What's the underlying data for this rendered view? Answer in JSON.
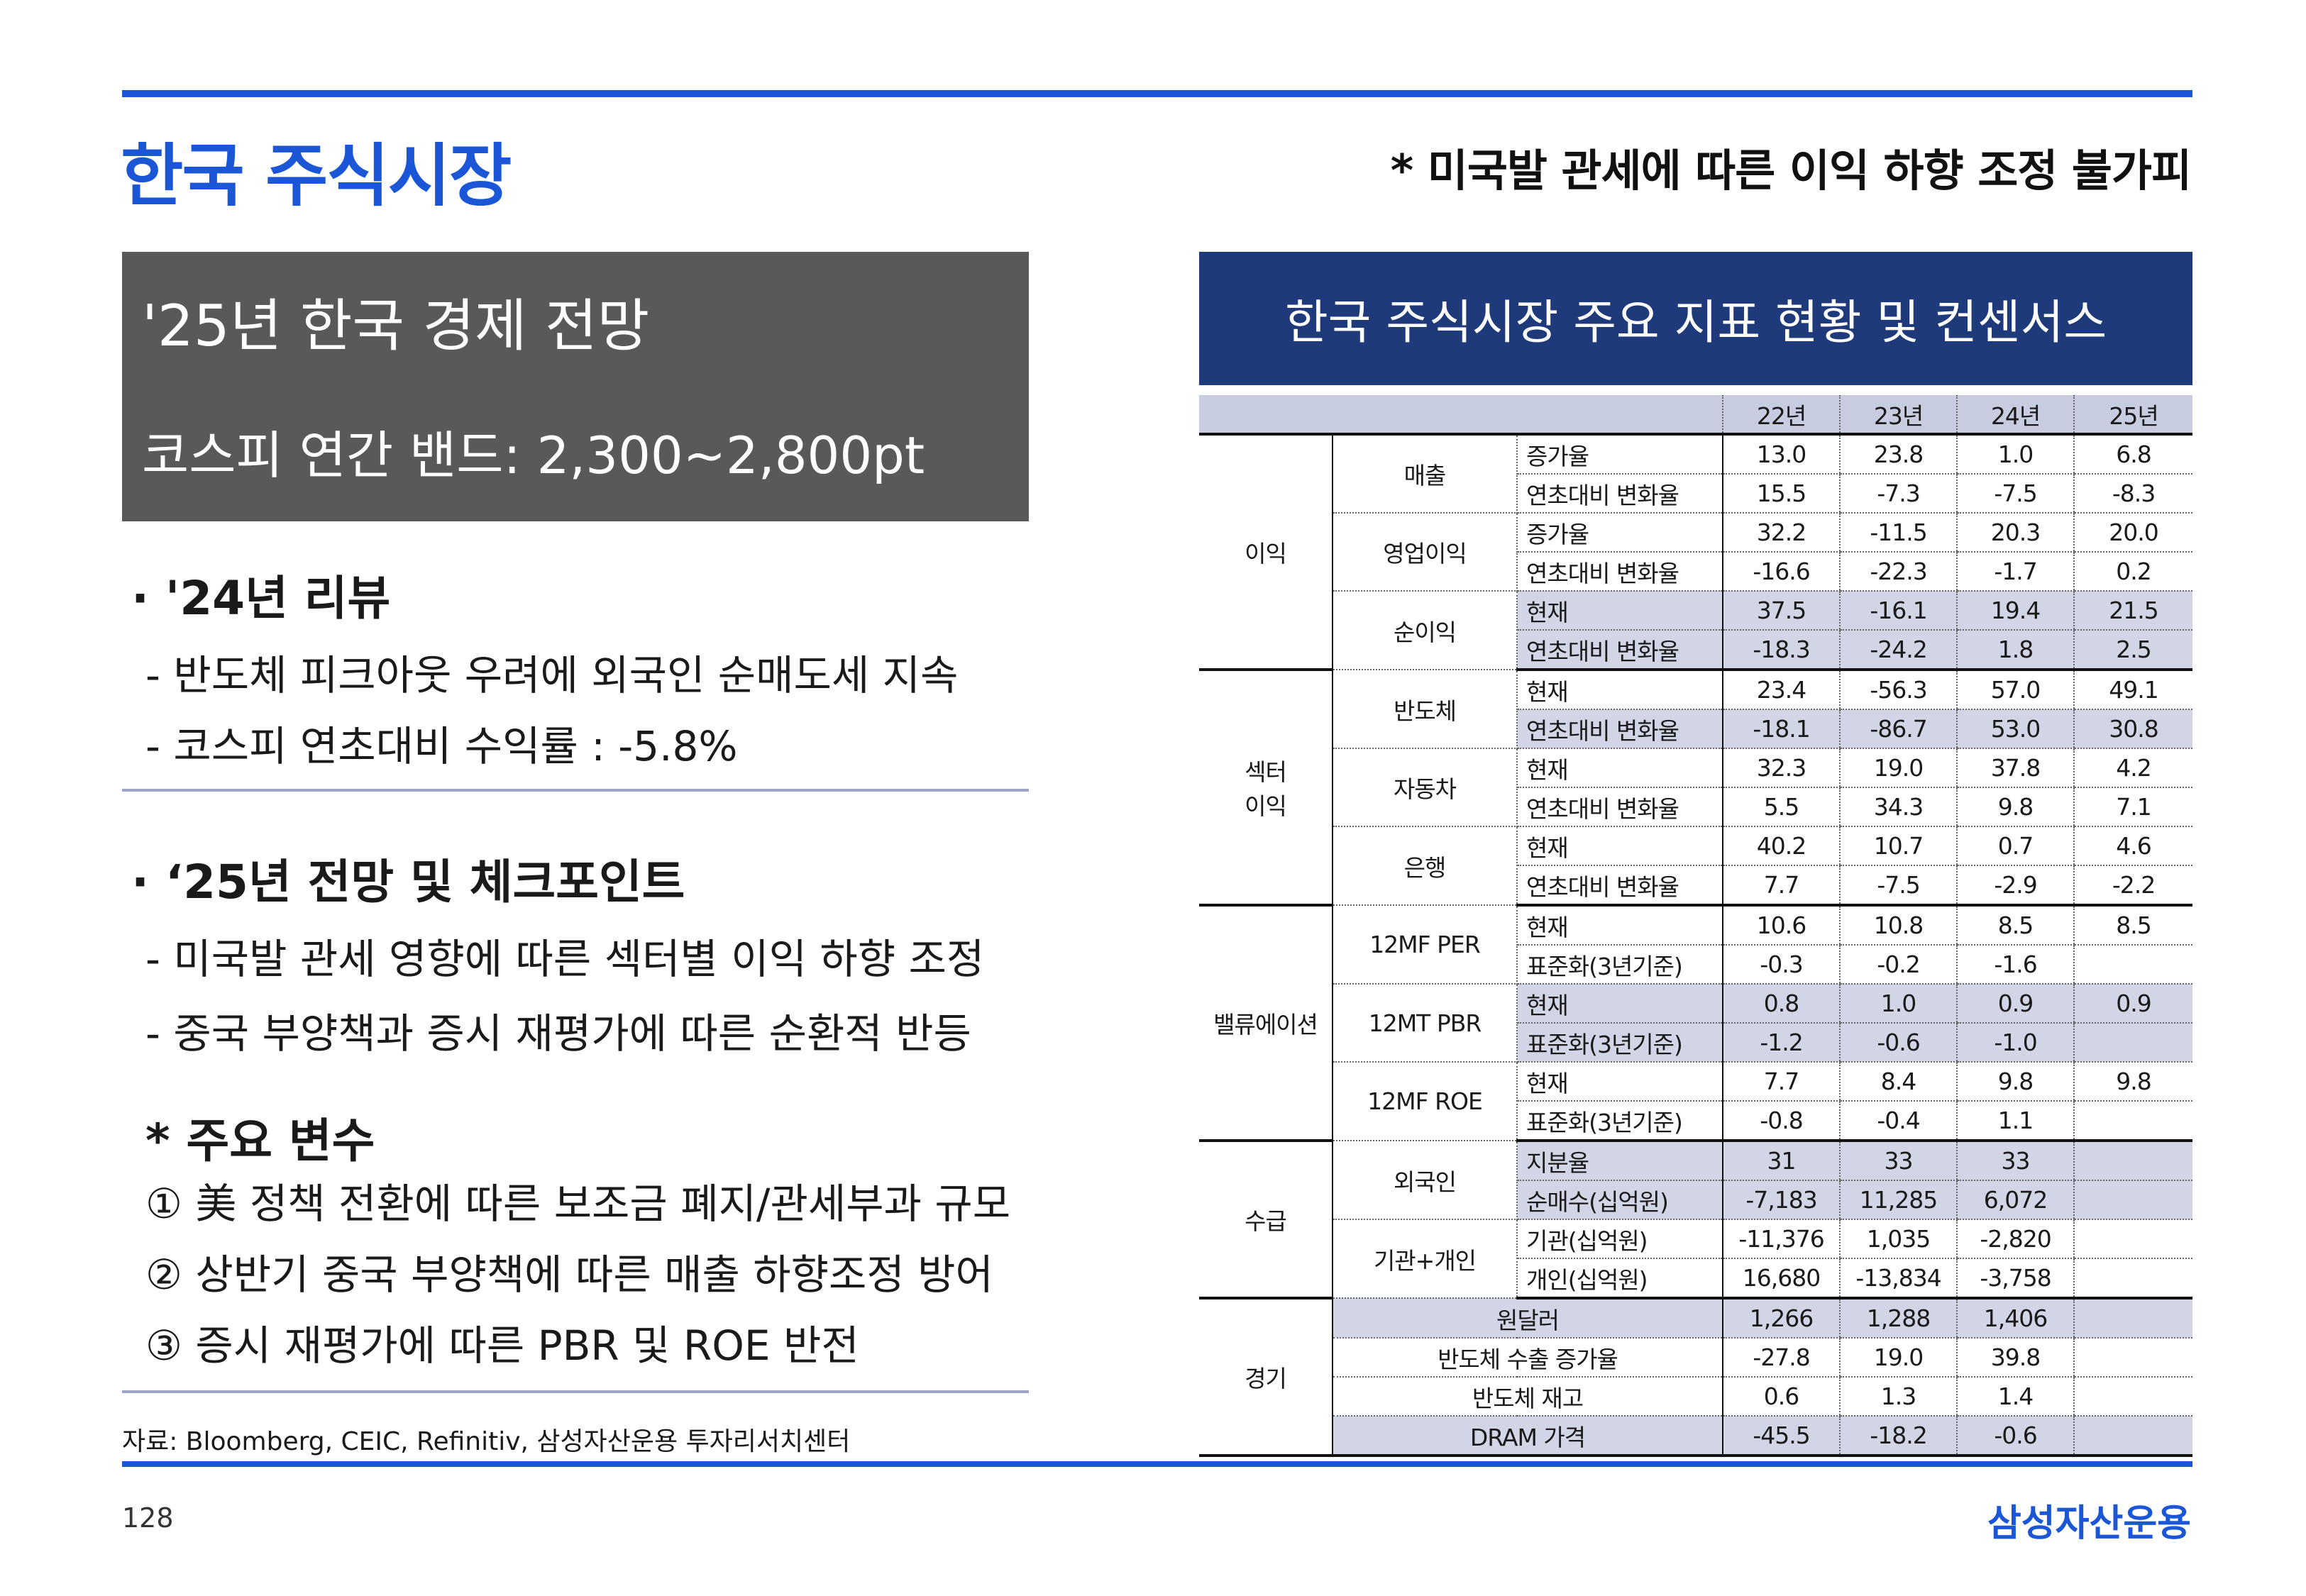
{
  "page_title": "한국 주식시장",
  "subtitle": "* 미국발 관세에 따른 이익 하향 조정 불가피",
  "outlook_box": {
    "title": "'25년 한국 경제 전망",
    "band": "코스피 연간 밴드: 2,300~2,800pt"
  },
  "review": {
    "heading": "· '24년 리뷰",
    "items": [
      "- 반도체 피크아웃 우려에 외국인 순매도세 지속",
      "- 코스피 연초대비 수익률 : -5.8%"
    ]
  },
  "outlook": {
    "heading": "· ‘25년 전망 및 체크포인트",
    "items": [
      "- 미국발 관세 영향에 따른 섹터별 이익 하향 조정",
      "- 중국 부양책과 증시 재평가에 따른 순환적 반등"
    ]
  },
  "variables": {
    "heading": "* 주요 변수",
    "items": [
      "① 美 정책 전환에 따른 보조금 폐지/관세부과 규모",
      "② 상반기 중국 부양책에 따른 매출 하향조정 방어",
      "③ 증시 재평가에 따른 PBR 및 ROE 반전"
    ]
  },
  "source": "자료: Bloomberg, CEIC, Refinitiv, 삼성자산운용 투자리서치센터",
  "page_number": "128",
  "brand": "삼성자산운용",
  "table": {
    "title": "한국 주식시장 주요 지표 현황 및 컨센서스",
    "years": [
      "22년",
      "23년",
      "24년",
      "25년"
    ],
    "groups": [
      {
        "label": "이익",
        "subs": [
          {
            "label": "매출",
            "rows": [
              {
                "metric": "증가율",
                "values": [
                  "13.0",
                  "23.8",
                  "1.0",
                  "6.8"
                ],
                "shaded": false
              },
              {
                "metric": "연초대비 변화율",
                "values": [
                  "15.5",
                  "-7.3",
                  "-7.5",
                  "-8.3"
                ],
                "shaded": false
              }
            ]
          },
          {
            "label": "영업이익",
            "rows": [
              {
                "metric": "증가율",
                "values": [
                  "32.2",
                  "-11.5",
                  "20.3",
                  "20.0"
                ],
                "shaded": false
              },
              {
                "metric": "연초대비 변화율",
                "values": [
                  "-16.6",
                  "-22.3",
                  "-1.7",
                  "0.2"
                ],
                "shaded": false
              }
            ]
          },
          {
            "label": "순이익",
            "rows": [
              {
                "metric": "현재",
                "values": [
                  "37.5",
                  "-16.1",
                  "19.4",
                  "21.5"
                ],
                "shaded": true
              },
              {
                "metric": "연초대비 변화율",
                "values": [
                  "-18.3",
                  "-24.2",
                  "1.8",
                  "2.5"
                ],
                "shaded": true
              }
            ]
          }
        ]
      },
      {
        "label": "섹터\n이익",
        "subs": [
          {
            "label": "반도체",
            "rows": [
              {
                "metric": "현재",
                "values": [
                  "23.4",
                  "-56.3",
                  "57.0",
                  "49.1"
                ],
                "shaded": false
              },
              {
                "metric": "연초대비 변화율",
                "values": [
                  "-18.1",
                  "-86.7",
                  "53.0",
                  "30.8"
                ],
                "shaded": true
              }
            ]
          },
          {
            "label": "자동차",
            "rows": [
              {
                "metric": "현재",
                "values": [
                  "32.3",
                  "19.0",
                  "37.8",
                  "4.2"
                ],
                "shaded": false
              },
              {
                "metric": "연초대비 변화율",
                "values": [
                  "5.5",
                  "34.3",
                  "9.8",
                  "7.1"
                ],
                "shaded": false
              }
            ]
          },
          {
            "label": "은행",
            "rows": [
              {
                "metric": "현재",
                "values": [
                  "40.2",
                  "10.7",
                  "0.7",
                  "4.6"
                ],
                "shaded": false
              },
              {
                "metric": "연초대비 변화율",
                "values": [
                  "7.7",
                  "-7.5",
                  "-2.9",
                  "-2.2"
                ],
                "shaded": false
              }
            ]
          }
        ]
      },
      {
        "label": "밸류에이션",
        "subs": [
          {
            "label": "12MF PER",
            "rows": [
              {
                "metric": "현재",
                "values": [
                  "10.6",
                  "10.8",
                  "8.5",
                  "8.5"
                ],
                "shaded": false
              },
              {
                "metric": "표준화(3년기준)",
                "values": [
                  "-0.3",
                  "-0.2",
                  "-1.6",
                  ""
                ],
                "shaded": false
              }
            ]
          },
          {
            "label": "12MT PBR",
            "rows": [
              {
                "metric": "현재",
                "values": [
                  "0.8",
                  "1.0",
                  "0.9",
                  "0.9"
                ],
                "shaded": true
              },
              {
                "metric": "표준화(3년기준)",
                "values": [
                  "-1.2",
                  "-0.6",
                  "-1.0",
                  ""
                ],
                "shaded": true
              }
            ]
          },
          {
            "label": "12MF ROE",
            "rows": [
              {
                "metric": "현재",
                "values": [
                  "7.7",
                  "8.4",
                  "9.8",
                  "9.8"
                ],
                "shaded": false
              },
              {
                "metric": "표준화(3년기준)",
                "values": [
                  "-0.8",
                  "-0.4",
                  "1.1",
                  ""
                ],
                "shaded": false
              }
            ]
          }
        ]
      },
      {
        "label": "수급",
        "subs": [
          {
            "label": "외국인",
            "rows": [
              {
                "metric": "지분율",
                "values": [
                  "31",
                  "33",
                  "33",
                  ""
                ],
                "shaded": true
              },
              {
                "metric": "순매수(십억원)",
                "values": [
                  "-7,183",
                  "11,285",
                  "6,072",
                  ""
                ],
                "shaded": true
              }
            ]
          },
          {
            "label": "기관+개인",
            "rows": [
              {
                "metric": "기관(십억원)",
                "values": [
                  "-11,376",
                  "1,035",
                  "-2,820",
                  ""
                ],
                "shaded": false
              },
              {
                "metric": "개인(십억원)",
                "values": [
                  "16,680",
                  "-13,834",
                  "-3,758",
                  ""
                ],
                "shaded": false
              }
            ]
          }
        ]
      },
      {
        "label": "경기",
        "flat": [
          {
            "metric": "원달러",
            "values": [
              "1,266",
              "1,288",
              "1,406",
              ""
            ],
            "shaded": true
          },
          {
            "metric": "반도체 수출 증가율",
            "values": [
              "-27.8",
              "19.0",
              "39.8",
              ""
            ],
            "shaded": false
          },
          {
            "metric": "반도체 재고",
            "values": [
              "0.6",
              "1.3",
              "1.4",
              ""
            ],
            "shaded": false
          },
          {
            "metric": "DRAM 가격",
            "values": [
              "-45.5",
              "-18.2",
              "-0.6",
              ""
            ],
            "shaded": true
          }
        ]
      }
    ]
  }
}
